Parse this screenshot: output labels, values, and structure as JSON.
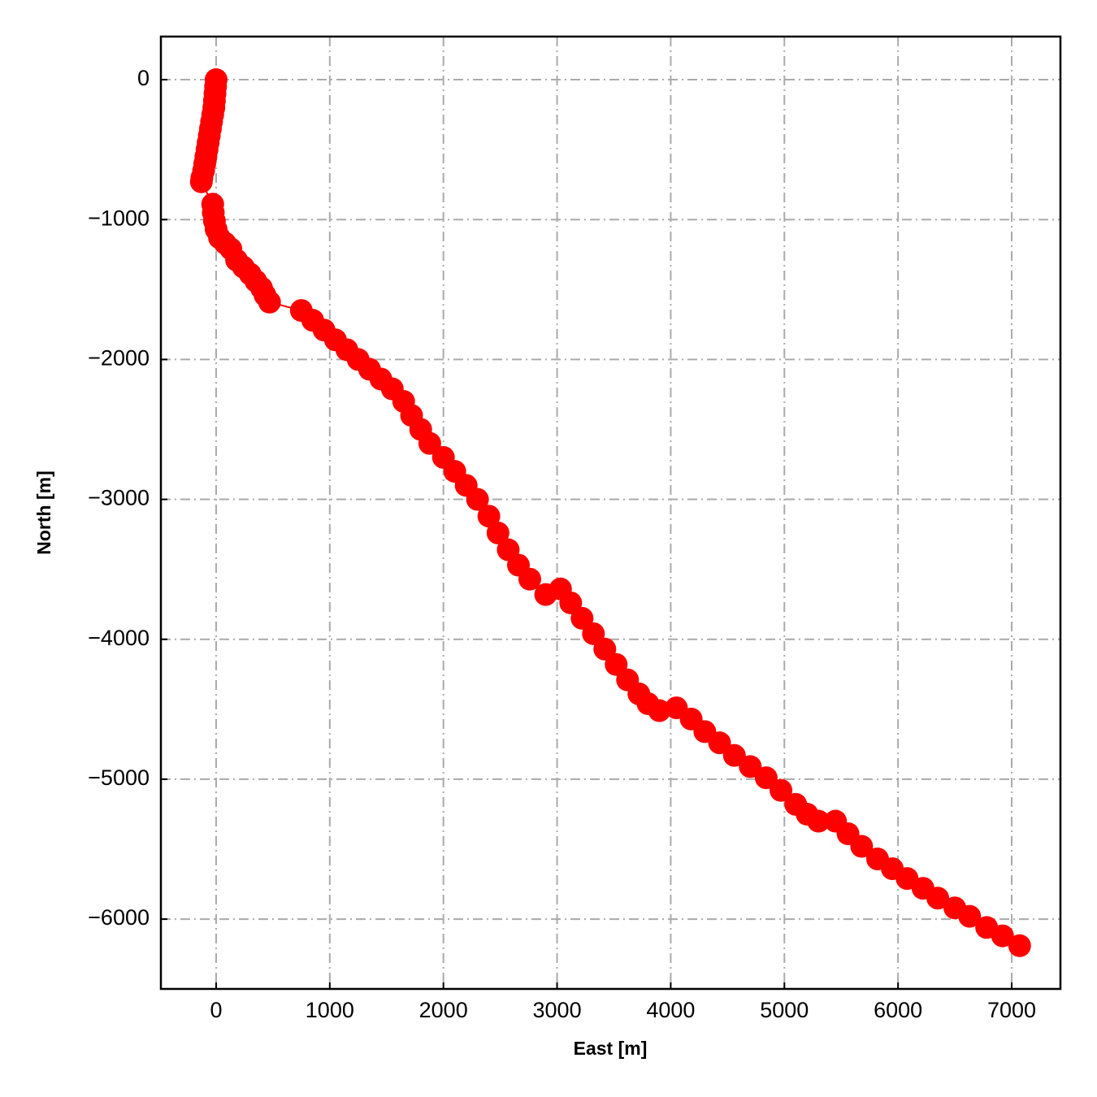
{
  "chart_data": {
    "type": "line",
    "xlabel": "East [m]",
    "ylabel": "North [m]",
    "color": "#ff0000",
    "grid": true,
    "marker": true,
    "xlim": [
      -486,
      7429
    ],
    "ylim": [
      -6499,
      308
    ],
    "xticks": [
      0,
      1000,
      2000,
      3000,
      4000,
      5000,
      6000,
      7000
    ],
    "yticks": [
      {
        "value": -6000,
        "label": "−6000"
      },
      {
        "value": -5000,
        "label": "−5000"
      },
      {
        "value": -4000,
        "label": "−4000"
      },
      {
        "value": -3000,
        "label": "−3000"
      },
      {
        "value": -2000,
        "label": "−2000"
      },
      {
        "value": -1000,
        "label": "−1000"
      },
      0
    ],
    "x": [
      0,
      -5,
      -10,
      -15,
      -20,
      -30,
      -40,
      -50,
      -60,
      -70,
      -80,
      -90,
      -100,
      -110,
      -125,
      -130,
      -30,
      -25,
      -15,
      0,
      30,
      80,
      130,
      180,
      240,
      300,
      350,
      400,
      430,
      470,
      750,
      850,
      950,
      1050,
      1150,
      1250,
      1350,
      1450,
      1550,
      1650,
      1720,
      1800,
      1880,
      2000,
      2100,
      2200,
      2300,
      2400,
      2480,
      2570,
      2660,
      2760,
      2900,
      3030,
      3120,
      3220,
      3320,
      3420,
      3520,
      3620,
      3720,
      3800,
      3900,
      4050,
      4180,
      4300,
      4430,
      4560,
      4700,
      4840,
      4970,
      5100,
      5200,
      5300,
      5450,
      5560,
      5680,
      5820,
      5950,
      6080,
      6220,
      6350,
      6500,
      6630,
      6780,
      6920,
      7070
    ],
    "values": [
      0,
      -50,
      -100,
      -150,
      -200,
      -250,
      -300,
      -350,
      -400,
      -450,
      -500,
      -550,
      -600,
      -650,
      -700,
      -730,
      -890,
      -950,
      -1010,
      -1070,
      -1130,
      -1170,
      -1210,
      -1290,
      -1340,
      -1390,
      -1440,
      -1490,
      -1540,
      -1590,
      -1650,
      -1720,
      -1790,
      -1860,
      -1930,
      -2000,
      -2070,
      -2140,
      -2210,
      -2300,
      -2400,
      -2500,
      -2600,
      -2700,
      -2800,
      -2900,
      -3000,
      -3120,
      -3240,
      -3360,
      -3470,
      -3570,
      -3680,
      -3640,
      -3740,
      -3850,
      -3960,
      -4070,
      -4180,
      -4290,
      -4390,
      -4460,
      -4510,
      -4490,
      -4570,
      -4660,
      -4740,
      -4830,
      -4910,
      -4990,
      -5080,
      -5180,
      -5250,
      -5300,
      -5300,
      -5390,
      -5480,
      -5570,
      -5640,
      -5710,
      -5780,
      -5850,
      -5920,
      -5980,
      -6060,
      -6120,
      -6190
    ]
  }
}
